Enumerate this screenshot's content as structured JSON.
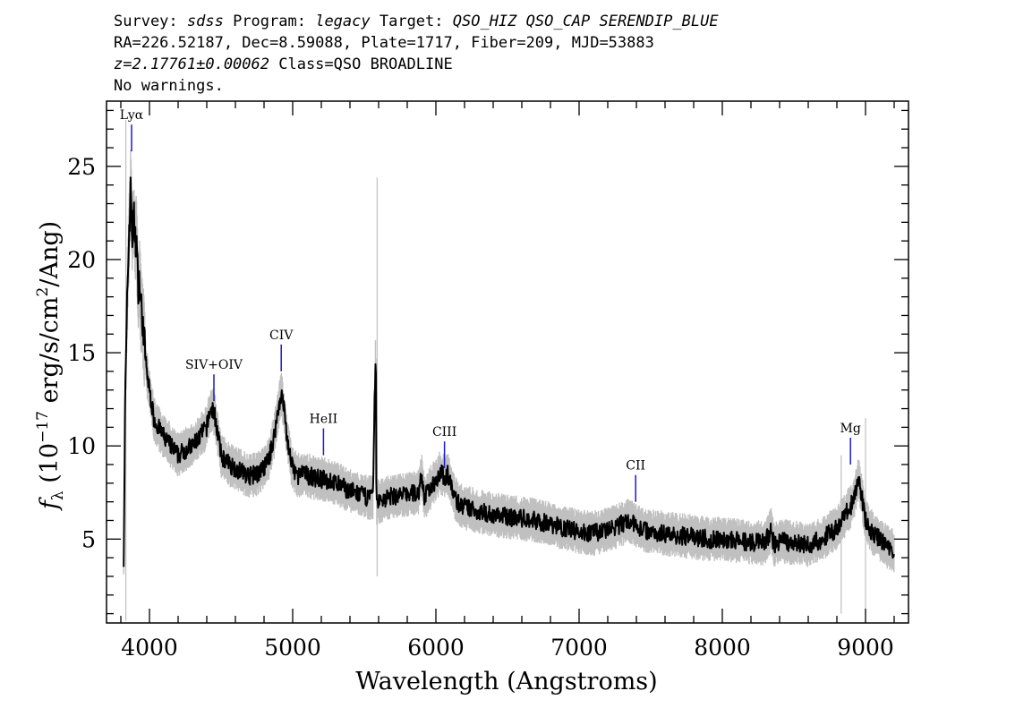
{
  "header": {
    "line1_survey_label": "Survey: ",
    "line1_survey": "sdss",
    "line1_program_label": " Program: ",
    "line1_program": "legacy",
    "line1_target_label": " Target: ",
    "line1_target": "QSO_HIZ QSO_CAP SERENDIP_BLUE",
    "line2": "RA=226.52187, Dec=8.59088, Plate=1717, Fiber=209, MJD=53883",
    "line3_z": "z=2.17761±0.00062",
    "line3_class": " Class=QSO BROADLINE",
    "line4": "No warnings."
  },
  "chart_data": {
    "type": "line",
    "xlabel": "Wavelength (Angstroms)",
    "ylabel_prefix": "f",
    "ylabel_sub": "λ",
    "ylabel_mid": " (10",
    "ylabel_exp": "−17",
    "ylabel_mid2": " erg/s/cm",
    "ylabel_exp2": "2",
    "ylabel_end": "/Ang)",
    "xlim": [
      3700,
      9300
    ],
    "ylim": [
      0.5,
      28.5
    ],
    "xticks": [
      4000,
      5000,
      6000,
      7000,
      8000,
      9000
    ],
    "yticks": [
      5,
      10,
      15,
      20,
      25
    ],
    "grid": false,
    "colors": {
      "flux": "#000000",
      "error": "#c0c0c0",
      "lines": "#1a1acc"
    },
    "series": [
      {
        "role": "flux",
        "x": [
          3820,
          3830,
          3840,
          3850,
          3860,
          3870,
          3880,
          3890,
          3900,
          3910,
          3920,
          3930,
          3940,
          3950,
          3960,
          3980,
          4000,
          4030,
          4060,
          4100,
          4150,
          4200,
          4250,
          4300,
          4350,
          4400,
          4420,
          4440,
          4460,
          4480,
          4500,
          4530,
          4560,
          4600,
          4650,
          4700,
          4750,
          4800,
          4840,
          4870,
          4900,
          4920,
          4940,
          4960,
          4990,
          5030,
          5080,
          5150,
          5220,
          5300,
          5400,
          5500,
          5560,
          5580,
          5585,
          5590,
          5600,
          5650,
          5700,
          5800,
          5880,
          5900,
          5920,
          5950,
          6000,
          6030,
          6060,
          6080,
          6100,
          6130,
          6160,
          6200,
          6300,
          6400,
          6500,
          6600,
          6700,
          6800,
          6900,
          7000,
          7100,
          7200,
          7300,
          7350,
          7400,
          7450,
          7500,
          7600,
          7700,
          7800,
          7900,
          8000,
          8100,
          8200,
          8300,
          8340,
          8360,
          8400,
          8500,
          8600,
          8700,
          8800,
          8850,
          8900,
          8930,
          8950,
          8970,
          9000,
          9050,
          9100,
          9150,
          9200
        ],
        "y": [
          4.0,
          12.5,
          16.0,
          19.5,
          22.0,
          24.0,
          21.0,
          22.5,
          21.0,
          21.0,
          18.5,
          19.0,
          17.5,
          17.0,
          16.0,
          14.0,
          13.0,
          11.5,
          11.0,
          10.5,
          10.0,
          9.5,
          9.8,
          10.0,
          10.5,
          11.0,
          11.8,
          12.0,
          11.5,
          10.5,
          9.5,
          9.2,
          9.0,
          8.8,
          8.6,
          8.4,
          8.5,
          8.8,
          9.5,
          10.5,
          12.0,
          12.8,
          12.0,
          10.5,
          9.0,
          8.4,
          8.5,
          8.3,
          8.2,
          8.0,
          7.6,
          7.3,
          7.2,
          15.6,
          6.4,
          7.2,
          7.0,
          7.2,
          7.3,
          7.4,
          7.5,
          8.5,
          7.2,
          7.6,
          8.2,
          8.6,
          8.3,
          8.5,
          8.0,
          7.3,
          6.9,
          6.7,
          6.5,
          6.3,
          6.2,
          6.1,
          6.0,
          5.8,
          5.6,
          5.4,
          5.3,
          5.5,
          5.8,
          6.0,
          5.7,
          5.5,
          5.4,
          5.3,
          5.2,
          5.1,
          5.0,
          5.0,
          4.9,
          4.8,
          4.8,
          5.5,
          4.7,
          4.9,
          4.8,
          4.7,
          5.0,
          5.6,
          6.2,
          6.8,
          7.5,
          8.3,
          7.5,
          6.0,
          5.3,
          5.0,
          4.6,
          4.3
        ]
      }
    ],
    "lines": [
      {
        "label": "Lyα",
        "x": 3875
      },
      {
        "label": "SIV+OIV",
        "x": 4450
      },
      {
        "label": "CIV",
        "x": 4920
      },
      {
        "label": "HeII",
        "x": 5215
      },
      {
        "label": "CIII",
        "x": 6060
      },
      {
        "label": "CII",
        "x": 7395
      },
      {
        "label": "Mg",
        "x": 8895
      }
    ]
  }
}
